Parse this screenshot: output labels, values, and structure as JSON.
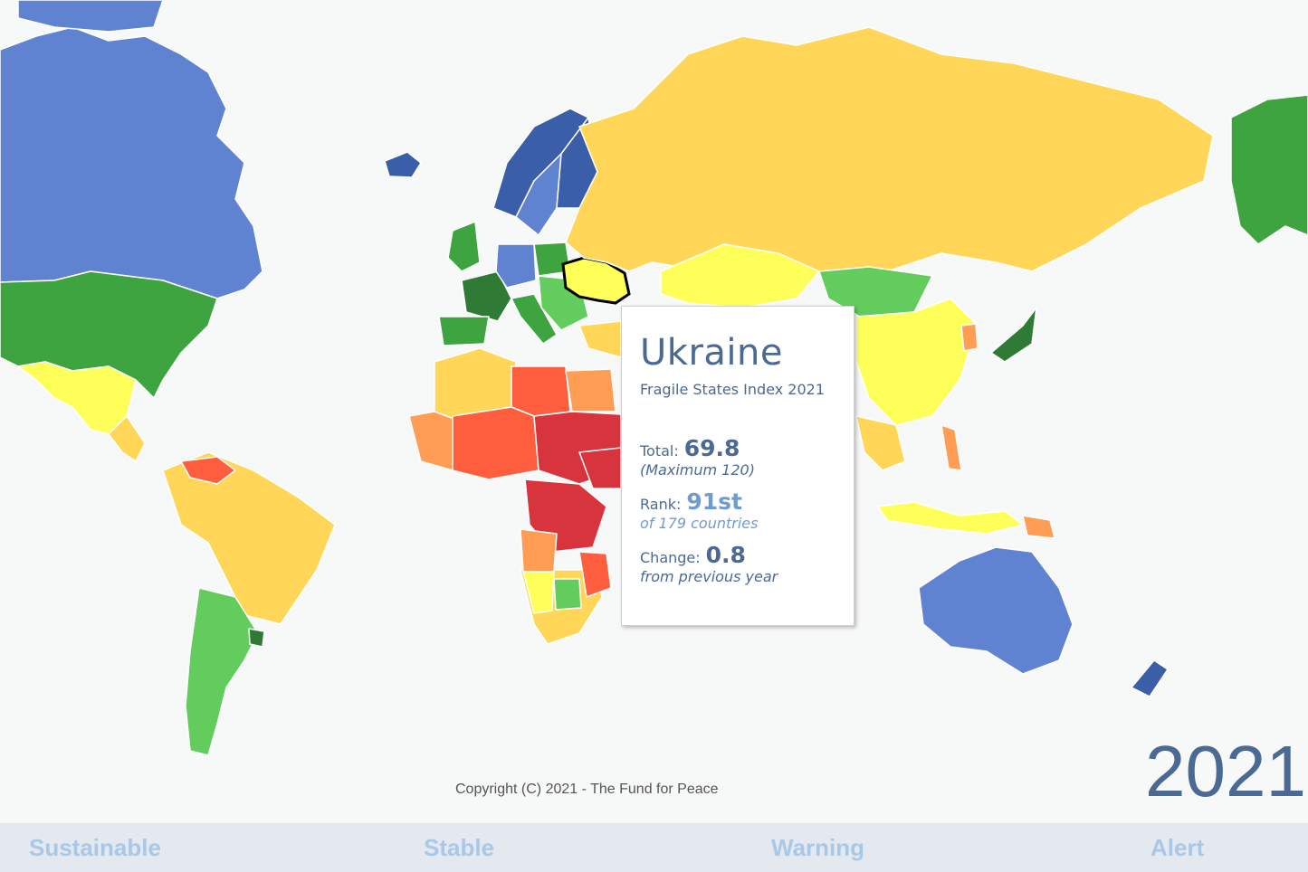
{
  "tooltip": {
    "country": "Ukraine",
    "subtitle": "Fragile States Index 2021",
    "total_label": "Total:",
    "total_value": "69.8",
    "total_note": "(Maximum 120)",
    "rank_label": "Rank:",
    "rank_value": "91st",
    "rank_note": "of 179 countries",
    "change_label": "Change:",
    "change_value": "0.8",
    "change_note": "from previous year"
  },
  "copyright": "Copyright (C) 2021 - The Fund for Peace",
  "year": "2021",
  "legend": {
    "items": [
      "Sustainable",
      "Stable",
      "Warning",
      "Alert"
    ]
  },
  "colors": {
    "sustainable_dark": "#3a5ea8",
    "sustainable": "#6083d1",
    "stable_dark": "#2f7a35",
    "stable": "#3ea43f",
    "stable_light": "#62cc5c",
    "warning_light": "#ffff5a",
    "warning": "#ffd658",
    "warning_dark": "#ff9d55",
    "alert": "#ff5e3e",
    "alert_dark": "#d8343e",
    "alert_darkest": "#a3202a",
    "legend_text": "#a8c8e8",
    "legend_bg": "#e4e8ef"
  }
}
